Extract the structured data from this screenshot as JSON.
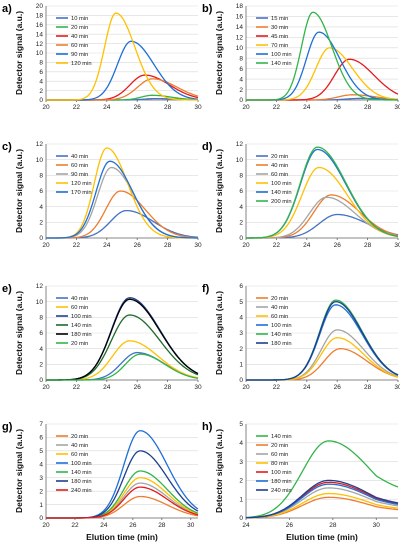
{
  "colors": {
    "blue": "#4472C4",
    "orange": "#ED7D31",
    "red": "#E41A1C",
    "gray": "#A5A5A5",
    "yellow": "#FFC000",
    "green": "#33B44A",
    "darkblue": "#1F3F8F",
    "darkgreen": "#1E6B2A"
  },
  "chart_data": [
    {
      "id": "a",
      "panel_label": "a)",
      "type": "line",
      "xlabel": "",
      "ylabel": "Detector signal (a.u.)",
      "xlim": [
        20,
        30
      ],
      "ylim": [
        0,
        20
      ],
      "xticks": [
        20,
        22,
        24,
        26,
        28,
        30
      ],
      "yticks": [
        0,
        2,
        4,
        6,
        8,
        10,
        12,
        14,
        16,
        18,
        20
      ],
      "legend_position": "left",
      "series": [
        {
          "name": "10 min",
          "color": "#4472C4",
          "peak_x": 27.2,
          "peak_y": 0.3,
          "width": 1.0
        },
        {
          "name": "20 min",
          "color": "#33B44A",
          "peak_x": 27.0,
          "peak_y": 1.0,
          "width": 1.0
        },
        {
          "name": "40 min",
          "color": "#E41A1C",
          "peak_x": 26.5,
          "peak_y": 5.3,
          "width": 1.3
        },
        {
          "name": "60 min",
          "color": "#ED7D31",
          "peak_x": 27.0,
          "peak_y": 4.5,
          "width": 1.3
        },
        {
          "name": "90 min",
          "color": "#1F6FD6",
          "peak_x": 25.6,
          "peak_y": 12.5,
          "width": 1.2
        },
        {
          "name": "120 min",
          "color": "#FFC000",
          "peak_x": 24.6,
          "peak_y": 18.5,
          "width": 1.0
        }
      ]
    },
    {
      "id": "b",
      "panel_label": "b)",
      "type": "line",
      "xlabel": "",
      "ylabel": "Detector signal (a.u.)",
      "xlim": [
        20,
        30
      ],
      "ylim": [
        0,
        18
      ],
      "xticks": [
        20,
        22,
        24,
        26,
        28,
        30
      ],
      "yticks": [
        0,
        2,
        4,
        6,
        8,
        10,
        12,
        14,
        16,
        18
      ],
      "legend_position": "left",
      "series": [
        {
          "name": "15 min",
          "color": "#4472C4",
          "peak_x": 27.5,
          "peak_y": 0.3,
          "width": 1.2
        },
        {
          "name": "30 min",
          "color": "#ED7D31",
          "peak_x": 27.0,
          "peak_y": 1.0,
          "width": 1.2
        },
        {
          "name": "45 min",
          "color": "#E41A1C",
          "peak_x": 26.8,
          "peak_y": 7.8,
          "width": 1.3
        },
        {
          "name": "70 min",
          "color": "#FFC000",
          "peak_x": 25.5,
          "peak_y": 10.0,
          "width": 1.2
        },
        {
          "name": "100 min",
          "color": "#1F6FD6",
          "peak_x": 24.8,
          "peak_y": 13.0,
          "width": 1.1
        },
        {
          "name": "140 min",
          "color": "#33B44A",
          "peak_x": 24.4,
          "peak_y": 16.8,
          "width": 1.0
        }
      ]
    },
    {
      "id": "c",
      "panel_label": "c)",
      "type": "line",
      "xlabel": "",
      "ylabel": "Detector signal (a.u.)",
      "xlim": [
        20,
        30
      ],
      "ylim": [
        0,
        12
      ],
      "xticks": [
        20,
        22,
        24,
        26,
        28,
        30
      ],
      "yticks": [
        0,
        2,
        4,
        6,
        8,
        10,
        12
      ],
      "legend_position": "left",
      "series": [
        {
          "name": "40 min",
          "color": "#4472C4",
          "peak_x": 25.3,
          "peak_y": 3.5,
          "width": 1.4
        },
        {
          "name": "60 min",
          "color": "#ED7D31",
          "peak_x": 24.9,
          "peak_y": 6.0,
          "width": 1.3
        },
        {
          "name": "90 min",
          "color": "#A5A5A5",
          "peak_x": 24.3,
          "peak_y": 9.0,
          "width": 1.2
        },
        {
          "name": "120 min",
          "color": "#FFC000",
          "peak_x": 24.0,
          "peak_y": 11.5,
          "width": 1.1
        },
        {
          "name": "170 min",
          "color": "#1F6FD6",
          "peak_x": 24.2,
          "peak_y": 9.8,
          "width": 1.2
        }
      ]
    },
    {
      "id": "d",
      "panel_label": "d)",
      "type": "line",
      "xlabel": "",
      "ylabel": "Detector signal (a.u.)",
      "xlim": [
        20,
        30
      ],
      "ylim": [
        0,
        12
      ],
      "xticks": [
        20,
        22,
        24,
        26,
        28,
        30
      ],
      "yticks": [
        0,
        2,
        4,
        6,
        8,
        10,
        12
      ],
      "legend_position": "left",
      "series": [
        {
          "name": "20 min",
          "color": "#4472C4",
          "peak_x": 26.0,
          "peak_y": 3.0,
          "width": 1.6
        },
        {
          "name": "40 min",
          "color": "#ED7D31",
          "peak_x": 25.6,
          "peak_y": 5.5,
          "width": 1.5
        },
        {
          "name": "60 min",
          "color": "#A5A5A5",
          "peak_x": 25.3,
          "peak_y": 5.2,
          "width": 1.5
        },
        {
          "name": "100 min",
          "color": "#FFC000",
          "peak_x": 24.8,
          "peak_y": 9.0,
          "width": 1.5
        },
        {
          "name": "140 min",
          "color": "#1F6FD6",
          "peak_x": 24.7,
          "peak_y": 11.3,
          "width": 1.5
        },
        {
          "name": "200 min",
          "color": "#33B44A",
          "peak_x": 24.7,
          "peak_y": 11.6,
          "width": 1.5
        }
      ]
    },
    {
      "id": "e",
      "panel_label": "e)",
      "type": "line",
      "xlabel": "",
      "ylabel": "Detector signal (a.u.)",
      "xlim": [
        20,
        30
      ],
      "ylim": [
        0,
        12
      ],
      "xticks": [
        20,
        22,
        24,
        26,
        28,
        30
      ],
      "yticks": [
        0,
        2,
        4,
        6,
        8,
        10,
        12
      ],
      "legend_position": "left",
      "series": [
        {
          "name": "40 min",
          "color": "#4472C4",
          "peak_x": 26.0,
          "peak_y": 3.5,
          "width": 1.4
        },
        {
          "name": "60 min",
          "color": "#FFC000",
          "peak_x": 25.5,
          "peak_y": 5.0,
          "width": 1.5
        },
        {
          "name": "100 min",
          "color": "#1F3F8F",
          "peak_x": 25.5,
          "peak_y": 10.5,
          "width": 1.6
        },
        {
          "name": "140 min",
          "color": "#1E6B2A",
          "peak_x": 25.5,
          "peak_y": 8.3,
          "width": 1.6
        },
        {
          "name": "180 min",
          "color": "#000000",
          "peak_x": 25.5,
          "peak_y": 10.3,
          "width": 1.6
        },
        {
          "name": "20 min",
          "color": "#33B44A",
          "peak_x": 26.2,
          "peak_y": 3.3,
          "width": 1.3
        }
      ]
    },
    {
      "id": "f",
      "panel_label": "f)",
      "type": "line",
      "xlabel": "",
      "ylabel": "Detector signal (a.u.)",
      "xlim": [
        20,
        30
      ],
      "ylim": [
        0,
        6
      ],
      "xticks": [
        20,
        22,
        24,
        26,
        28,
        30
      ],
      "yticks": [
        0,
        1,
        2,
        3,
        4,
        5,
        6
      ],
      "legend_position": "left",
      "series": [
        {
          "name": "20 min",
          "color": "#ED7D31",
          "peak_x": 26.2,
          "peak_y": 2.0,
          "width": 1.4
        },
        {
          "name": "40 min",
          "color": "#A5A5A5",
          "peak_x": 26.0,
          "peak_y": 3.2,
          "width": 1.4
        },
        {
          "name": "60 min",
          "color": "#FFC000",
          "peak_x": 26.0,
          "peak_y": 2.7,
          "width": 1.4
        },
        {
          "name": "100 min",
          "color": "#1F6FD6",
          "peak_x": 25.9,
          "peak_y": 4.8,
          "width": 1.4
        },
        {
          "name": "140 min",
          "color": "#33B44A",
          "peak_x": 25.9,
          "peak_y": 5.1,
          "width": 1.4
        },
        {
          "name": "180 min",
          "color": "#1F3F8F",
          "peak_x": 25.9,
          "peak_y": 5.0,
          "width": 1.4
        }
      ]
    },
    {
      "id": "g",
      "panel_label": "g)",
      "type": "line",
      "xlabel": "Elution time (min)",
      "ylabel": "Detector signal (a.u.)",
      "xlim": [
        20,
        30.5
      ],
      "ylim": [
        0,
        7
      ],
      "xticks": [
        20,
        22,
        24,
        26,
        28,
        30
      ],
      "yticks": [
        0,
        1,
        2,
        3,
        4,
        5,
        6,
        7
      ],
      "legend_position": "left",
      "series": [
        {
          "name": "20 min",
          "color": "#ED7D31",
          "peak_x": 26.5,
          "peak_y": 1.6,
          "width": 1.5
        },
        {
          "name": "40 min",
          "color": "#A5A5A5",
          "peak_x": 26.5,
          "peak_y": 2.6,
          "width": 1.5
        },
        {
          "name": "60 min",
          "color": "#FFC000",
          "peak_x": 26.5,
          "peak_y": 3.0,
          "width": 1.5
        },
        {
          "name": "100 min",
          "color": "#1F6FD6",
          "peak_x": 26.5,
          "peak_y": 6.5,
          "width": 1.5
        },
        {
          "name": "140 min",
          "color": "#33B44A",
          "peak_x": 26.5,
          "peak_y": 3.5,
          "width": 1.5
        },
        {
          "name": "180 min",
          "color": "#1F3F8F",
          "peak_x": 26.5,
          "peak_y": 5.0,
          "width": 1.5
        },
        {
          "name": "240 min",
          "color": "#E41A1C",
          "peak_x": 26.5,
          "peak_y": 2.3,
          "width": 1.5
        }
      ]
    },
    {
      "id": "h",
      "panel_label": "h)",
      "type": "line",
      "xlabel": "Elution time (min)",
      "ylabel": "Detector signal (a.u.)",
      "xlim": [
        24,
        31
      ],
      "ylim": [
        0,
        5
      ],
      "xticks": [
        24,
        26,
        28,
        30
      ],
      "yticks": [
        0,
        1,
        2,
        3,
        4,
        5
      ],
      "legend_position": "left",
      "series": [
        {
          "name": "140 min",
          "color": "#33B44A",
          "peak_x": 27.8,
          "peak_y": 4.1,
          "width": 1.6
        },
        {
          "name": "20 min",
          "color": "#ED7D31",
          "peak_x": 27.8,
          "peak_y": 1.1,
          "width": 1.6
        },
        {
          "name": "60 min",
          "color": "#A5A5A5",
          "peak_x": 27.8,
          "peak_y": 1.6,
          "width": 1.6
        },
        {
          "name": "80 min",
          "color": "#FFC000",
          "peak_x": 27.8,
          "peak_y": 1.3,
          "width": 1.6
        },
        {
          "name": "100 min",
          "color": "#E41A1C",
          "peak_x": 27.8,
          "peak_y": 1.9,
          "width": 1.6
        },
        {
          "name": "180 min",
          "color": "#1F6FD6",
          "peak_x": 27.8,
          "peak_y": 1.8,
          "width": 1.6
        },
        {
          "name": "240 min",
          "color": "#1F3F8F",
          "peak_x": 27.8,
          "peak_y": 2.0,
          "width": 1.6
        }
      ]
    }
  ]
}
